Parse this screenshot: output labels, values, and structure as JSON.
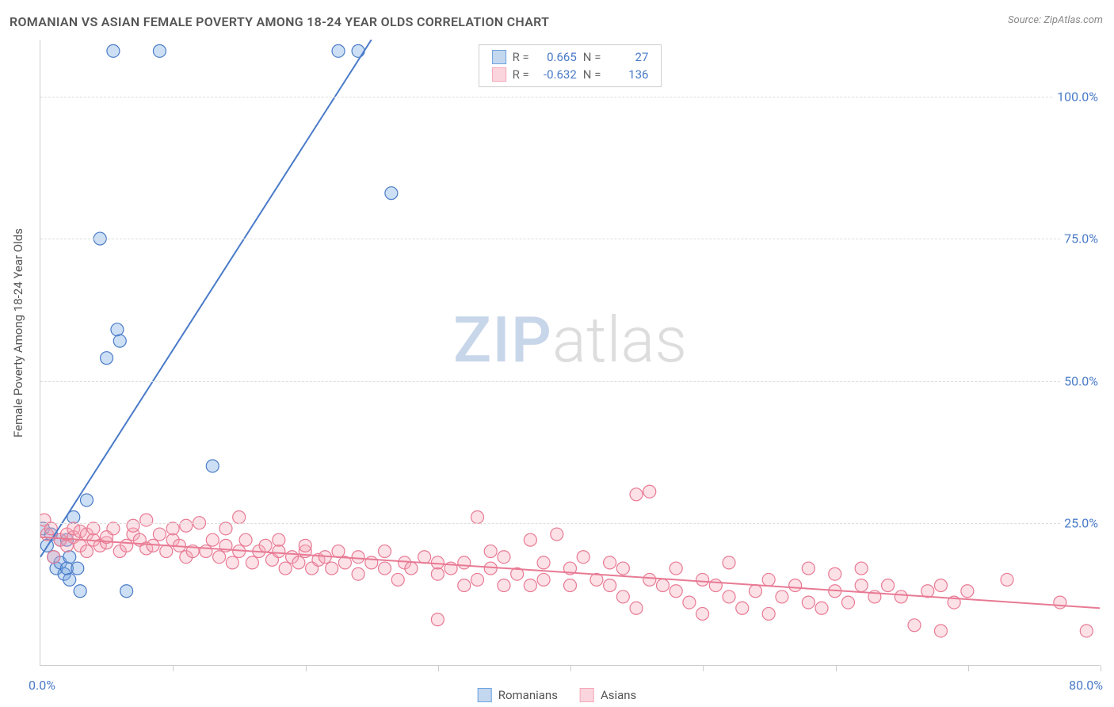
{
  "title": "ROMANIAN VS ASIAN FEMALE POVERTY AMONG 18-24 YEAR OLDS CORRELATION CHART",
  "source_label": "Source: ZipAtlas.com",
  "y_axis_title": "Female Poverty Among 18-24 Year Olds",
  "watermark": {
    "part1": "ZIP",
    "part2": "atlas"
  },
  "chart": {
    "type": "scatter",
    "background_color": "#ffffff",
    "grid_color": "#dddddd",
    "axis_color": "#cccccc",
    "xlim": [
      0,
      80
    ],
    "ylim": [
      0,
      110
    ],
    "x_ticks": [
      10,
      20,
      30,
      40,
      50,
      60,
      70,
      80
    ],
    "y_gridlines": [
      25,
      50,
      75,
      100
    ],
    "y_tick_labels": [
      "25.0%",
      "50.0%",
      "75.0%",
      "100.0%"
    ],
    "x_label_min": "0.0%",
    "x_label_max": "80.0%",
    "marker_radius": 8,
    "marker_fill_opacity": 0.35,
    "marker_stroke_width": 1.2,
    "line_width": 2,
    "series": [
      {
        "name": "Romanians",
        "color": "#6fa3e0",
        "stroke": "#4a7bc8",
        "r_value": "0.665",
        "n_value": "27",
        "trend": {
          "x1": 0,
          "y1": 19,
          "x2": 25,
          "y2": 110
        },
        "points": [
          [
            0.2,
            24
          ],
          [
            0.5,
            21
          ],
          [
            0.8,
            23
          ],
          [
            1.0,
            19
          ],
          [
            1.2,
            17
          ],
          [
            1.5,
            18
          ],
          [
            1.5,
            22
          ],
          [
            1.8,
            16
          ],
          [
            2.0,
            17
          ],
          [
            2.0,
            22
          ],
          [
            2.2,
            15
          ],
          [
            2.2,
            19
          ],
          [
            2.5,
            26
          ],
          [
            2.8,
            17
          ],
          [
            3.0,
            13
          ],
          [
            3.5,
            29
          ],
          [
            4.5,
            75
          ],
          [
            5.0,
            54
          ],
          [
            5.5,
            108
          ],
          [
            5.8,
            59
          ],
          [
            6.0,
            57
          ],
          [
            6.5,
            13
          ],
          [
            9.0,
            108
          ],
          [
            13.0,
            35
          ],
          [
            22.5,
            108
          ],
          [
            24.0,
            108
          ],
          [
            26.5,
            83
          ]
        ]
      },
      {
        "name": "Asians",
        "color": "#f5a8b8",
        "stroke": "#e87a94",
        "r_value": "-0.632",
        "n_value": "136",
        "trend": {
          "x1": 0,
          "y1": 22.5,
          "x2": 80,
          "y2": 10
        },
        "points": [
          [
            0.3,
            25.5
          ],
          [
            0.5,
            23
          ],
          [
            0.8,
            24
          ],
          [
            1.0,
            19
          ],
          [
            1.5,
            22
          ],
          [
            2.0,
            21
          ],
          [
            2.0,
            23
          ],
          [
            2.5,
            22.5
          ],
          [
            2.5,
            24
          ],
          [
            3.0,
            21
          ],
          [
            3.0,
            23.5
          ],
          [
            3.5,
            20
          ],
          [
            3.5,
            23
          ],
          [
            4.0,
            22
          ],
          [
            4.0,
            24
          ],
          [
            4.5,
            21
          ],
          [
            5.0,
            21.5
          ],
          [
            5.0,
            22.5
          ],
          [
            5.5,
            24
          ],
          [
            6.0,
            20
          ],
          [
            6.5,
            21
          ],
          [
            7.0,
            23
          ],
          [
            7.0,
            24.5
          ],
          [
            7.5,
            22
          ],
          [
            8.0,
            20.5
          ],
          [
            8.0,
            25.5
          ],
          [
            8.5,
            21
          ],
          [
            9.0,
            23
          ],
          [
            9.5,
            20
          ],
          [
            10.0,
            22
          ],
          [
            10.0,
            24
          ],
          [
            10.5,
            21
          ],
          [
            11.0,
            19
          ],
          [
            11.0,
            24.5
          ],
          [
            11.5,
            20
          ],
          [
            12.0,
            25
          ],
          [
            12.5,
            20
          ],
          [
            13.0,
            22
          ],
          [
            13.5,
            19
          ],
          [
            14.0,
            21
          ],
          [
            14.0,
            24
          ],
          [
            14.5,
            18
          ],
          [
            15.0,
            20
          ],
          [
            15.0,
            26
          ],
          [
            15.5,
            22
          ],
          [
            16.0,
            18
          ],
          [
            16.5,
            20
          ],
          [
            17.0,
            21
          ],
          [
            17.5,
            18.5
          ],
          [
            18.0,
            20
          ],
          [
            18.0,
            22
          ],
          [
            18.5,
            17
          ],
          [
            19.0,
            19
          ],
          [
            19.5,
            18
          ],
          [
            20.0,
            20
          ],
          [
            20.0,
            21
          ],
          [
            20.5,
            17
          ],
          [
            21.0,
            18.5
          ],
          [
            21.5,
            19
          ],
          [
            22.0,
            17
          ],
          [
            22.5,
            20
          ],
          [
            23.0,
            18
          ],
          [
            24.0,
            16
          ],
          [
            24.0,
            19
          ],
          [
            25.0,
            18
          ],
          [
            26.0,
            17
          ],
          [
            26.0,
            20
          ],
          [
            27.0,
            15
          ],
          [
            27.5,
            18
          ],
          [
            28.0,
            17
          ],
          [
            29.0,
            19
          ],
          [
            30.0,
            16
          ],
          [
            30.0,
            18
          ],
          [
            30.0,
            8
          ],
          [
            31.0,
            17
          ],
          [
            32.0,
            14
          ],
          [
            32.0,
            18
          ],
          [
            33.0,
            15
          ],
          [
            33.0,
            26
          ],
          [
            34.0,
            17
          ],
          [
            34.0,
            20
          ],
          [
            35.0,
            14
          ],
          [
            35.0,
            19
          ],
          [
            36.0,
            16
          ],
          [
            37.0,
            14
          ],
          [
            37.0,
            22
          ],
          [
            38.0,
            15
          ],
          [
            38.0,
            18
          ],
          [
            39.0,
            23
          ],
          [
            40.0,
            14
          ],
          [
            40.0,
            17
          ],
          [
            41.0,
            19
          ],
          [
            42.0,
            15
          ],
          [
            43.0,
            14
          ],
          [
            43.0,
            18
          ],
          [
            44.0,
            12
          ],
          [
            44.0,
            17
          ],
          [
            45.0,
            10
          ],
          [
            45.0,
            30
          ],
          [
            46.0,
            30.5
          ],
          [
            46.0,
            15
          ],
          [
            47.0,
            14
          ],
          [
            48.0,
            13
          ],
          [
            48.0,
            17
          ],
          [
            49.0,
            11
          ],
          [
            50.0,
            15
          ],
          [
            50.0,
            9
          ],
          [
            51.0,
            14
          ],
          [
            52.0,
            12
          ],
          [
            52.0,
            18
          ],
          [
            53.0,
            10
          ],
          [
            54.0,
            13
          ],
          [
            55.0,
            15
          ],
          [
            55.0,
            9
          ],
          [
            56.0,
            12
          ],
          [
            57.0,
            14
          ],
          [
            58.0,
            11
          ],
          [
            58.0,
            17
          ],
          [
            59.0,
            10
          ],
          [
            60.0,
            13
          ],
          [
            60.0,
            16
          ],
          [
            61.0,
            11
          ],
          [
            62.0,
            14
          ],
          [
            62.0,
            17
          ],
          [
            63.0,
            12
          ],
          [
            64.0,
            14
          ],
          [
            65.0,
            12
          ],
          [
            66.0,
            7
          ],
          [
            67.0,
            13
          ],
          [
            68.0,
            6
          ],
          [
            68.0,
            14
          ],
          [
            69.0,
            11
          ],
          [
            70.0,
            13
          ],
          [
            73.0,
            15
          ],
          [
            77.0,
            11
          ],
          [
            79.0,
            6
          ]
        ]
      }
    ]
  },
  "legend_top": {
    "r_label": "R =",
    "n_label": "N ="
  },
  "bottom_legend": {
    "item1": "Romanians",
    "item2": "Asians"
  }
}
